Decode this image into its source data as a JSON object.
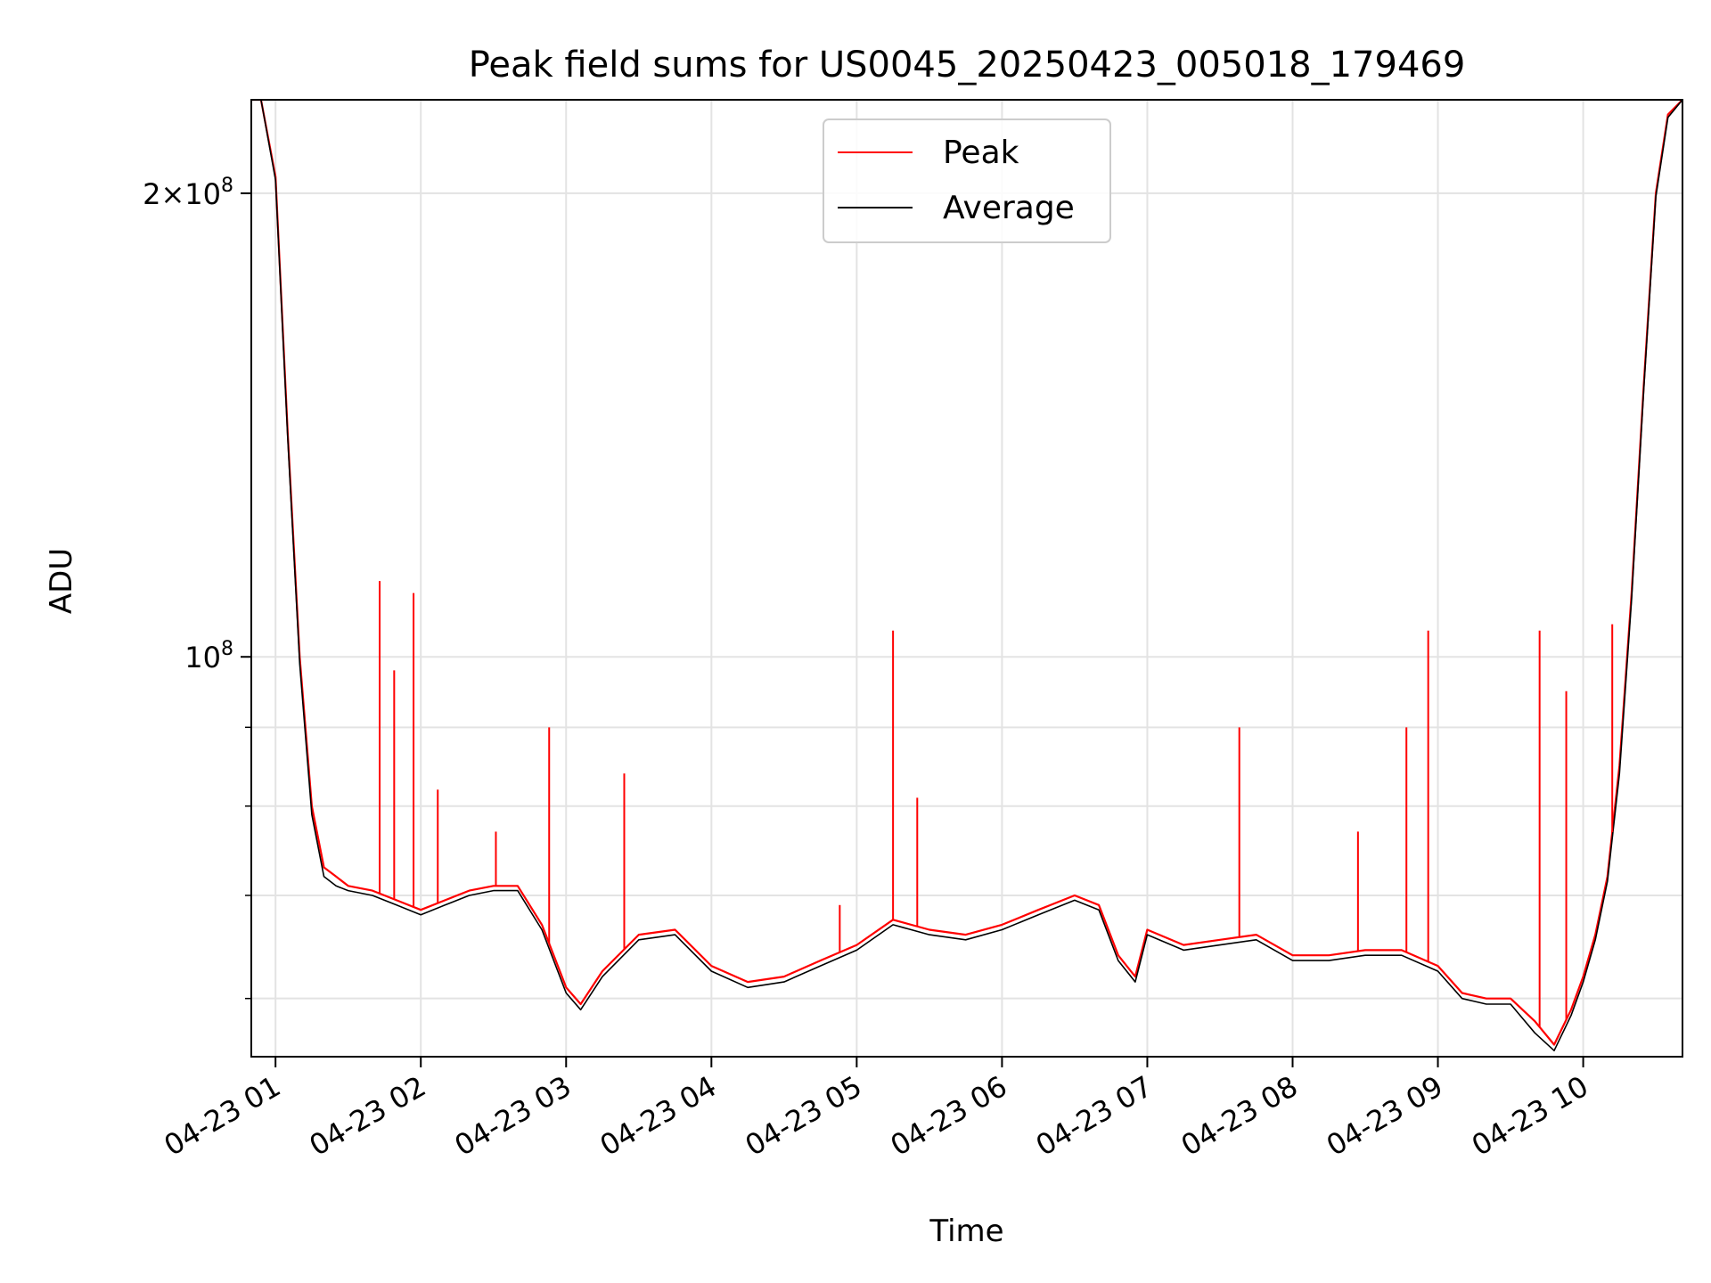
{
  "chart_data": {
    "type": "line",
    "title": "Peak field sums for US0045_20250423_005018_179469",
    "xlabel": "Time",
    "ylabel": "ADU",
    "yscale": "log",
    "ylim": [
      55000000,
      230000000
    ],
    "xlim": [
      "04-23 00:50",
      "04-23 10:41"
    ],
    "grid": true,
    "legend_position": "top-center",
    "xticks": [
      "04-23 01",
      "04-23 02",
      "04-23 03",
      "04-23 04",
      "04-23 05",
      "04-23 06",
      "04-23 07",
      "04-23 08",
      "04-23 09",
      "04-23 10"
    ],
    "xtick_times": [
      "04-23 01:00",
      "04-23 02:00",
      "04-23 03:00",
      "04-23 04:00",
      "04-23 05:00",
      "04-23 06:00",
      "04-23 07:00",
      "04-23 08:00",
      "04-23 09:00",
      "04-23 10:00"
    ],
    "yticks_major": [
      {
        "value": 100000000,
        "mant": "",
        "exp": "8"
      },
      {
        "value": 200000000,
        "mant": "2×",
        "exp": "8"
      }
    ],
    "yticks_minor": [
      60000000,
      70000000,
      80000000,
      90000000
    ],
    "series": [
      {
        "name": "Peak",
        "color": "#ff0000",
        "x": [
          "04-23 00:50",
          "04-23 00:54",
          "04-23 01:00",
          "04-23 01:05",
          "04-23 01:10",
          "04-23 01:15",
          "04-23 01:20",
          "04-23 01:25",
          "04-23 01:30",
          "04-23 01:40",
          "04-23 01:50",
          "04-23 02:00",
          "04-23 02:10",
          "04-23 02:20",
          "04-23 02:30",
          "04-23 02:40",
          "04-23 02:50",
          "04-23 03:00",
          "04-23 03:06",
          "04-23 03:15",
          "04-23 03:30",
          "04-23 03:45",
          "04-23 04:00",
          "04-23 04:15",
          "04-23 04:30",
          "04-23 04:45",
          "04-23 05:00",
          "04-23 05:15",
          "04-23 05:30",
          "04-23 05:45",
          "04-23 06:00",
          "04-23 06:15",
          "04-23 06:30",
          "04-23 06:40",
          "04-23 06:48",
          "04-23 06:55",
          "04-23 07:00",
          "04-23 07:15",
          "04-23 07:30",
          "04-23 07:45",
          "04-23 08:00",
          "04-23 08:15",
          "04-23 08:30",
          "04-23 08:45",
          "04-23 09:00",
          "04-23 09:10",
          "04-23 09:20",
          "04-23 09:30",
          "04-23 09:40",
          "04-23 09:48",
          "04-23 09:55",
          "04-23 10:00",
          "04-23 10:05",
          "04-23 10:10",
          "04-23 10:15",
          "04-23 10:20",
          "04-23 10:25",
          "04-23 10:30",
          "04-23 10:35",
          "04-23 10:41"
        ],
        "y": [
          230000000,
          230000000,
          205000000,
          140000000,
          100000000,
          80000000,
          73000000,
          72000000,
          71000000,
          70500000,
          69500000,
          68500000,
          69500000,
          70500000,
          71000000,
          71000000,
          67000000,
          61000000,
          59500000,
          62500000,
          66000000,
          66500000,
          63000000,
          61500000,
          62000000,
          63500000,
          65000000,
          67500000,
          66500000,
          66000000,
          67000000,
          68500000,
          70000000,
          69000000,
          64000000,
          62000000,
          66500000,
          65000000,
          65500000,
          66000000,
          64000000,
          64000000,
          64500000,
          64500000,
          63000000,
          60500000,
          60000000,
          60000000,
          58000000,
          56000000,
          59000000,
          62000000,
          66000000,
          72000000,
          85000000,
          110000000,
          150000000,
          200000000,
          225000000,
          230000000
        ]
      },
      {
        "name": "Average",
        "color": "#000000",
        "x": [
          "04-23 00:50",
          "04-23 00:54",
          "04-23 01:00",
          "04-23 01:05",
          "04-23 01:10",
          "04-23 01:15",
          "04-23 01:20",
          "04-23 01:25",
          "04-23 01:30",
          "04-23 01:40",
          "04-23 01:50",
          "04-23 02:00",
          "04-23 02:10",
          "04-23 02:20",
          "04-23 02:30",
          "04-23 02:40",
          "04-23 02:50",
          "04-23 03:00",
          "04-23 03:06",
          "04-23 03:15",
          "04-23 03:30",
          "04-23 03:45",
          "04-23 04:00",
          "04-23 04:15",
          "04-23 04:30",
          "04-23 04:45",
          "04-23 05:00",
          "04-23 05:15",
          "04-23 05:30",
          "04-23 05:45",
          "04-23 06:00",
          "04-23 06:15",
          "04-23 06:30",
          "04-23 06:40",
          "04-23 06:48",
          "04-23 06:55",
          "04-23 07:00",
          "04-23 07:15",
          "04-23 07:30",
          "04-23 07:45",
          "04-23 08:00",
          "04-23 08:15",
          "04-23 08:30",
          "04-23 08:45",
          "04-23 09:00",
          "04-23 09:10",
          "04-23 09:20",
          "04-23 09:30",
          "04-23 09:40",
          "04-23 09:48",
          "04-23 09:55",
          "04-23 10:00",
          "04-23 10:05",
          "04-23 10:10",
          "04-23 10:15",
          "04-23 10:20",
          "04-23 10:25",
          "04-23 10:30",
          "04-23 10:35",
          "04-23 10:41"
        ],
        "y": [
          230000000,
          230000000,
          204000000,
          139000000,
          99000000,
          79000000,
          72000000,
          71000000,
          70500000,
          70000000,
          69000000,
          68000000,
          69000000,
          70000000,
          70500000,
          70500000,
          66500000,
          60500000,
          59000000,
          62000000,
          65500000,
          66000000,
          62500000,
          61000000,
          61500000,
          63000000,
          64500000,
          67000000,
          66000000,
          65500000,
          66500000,
          68000000,
          69500000,
          68500000,
          63500000,
          61500000,
          66000000,
          64500000,
          65000000,
          65500000,
          63500000,
          63500000,
          64000000,
          64000000,
          62500000,
          60000000,
          59500000,
          59500000,
          57000000,
          55500000,
          58500000,
          61500000,
          65500000,
          71500000,
          84000000,
          109000000,
          149000000,
          199000000,
          224000000,
          230000000
        ]
      }
    ],
    "spikes": [
      {
        "series": "Peak",
        "x": "04-23 01:43",
        "y": 112000000
      },
      {
        "series": "Peak",
        "x": "04-23 01:49",
        "y": 98000000
      },
      {
        "series": "Peak",
        "x": "04-23 01:57",
        "y": 110000000
      },
      {
        "series": "Peak",
        "x": "04-23 02:07",
        "y": 82000000
      },
      {
        "series": "Peak",
        "x": "04-23 02:31",
        "y": 77000000
      },
      {
        "series": "Peak",
        "x": "04-23 02:53",
        "y": 90000000
      },
      {
        "series": "Peak",
        "x": "04-23 03:24",
        "y": 84000000
      },
      {
        "series": "Peak",
        "x": "04-23 04:53",
        "y": 69000000
      },
      {
        "series": "Peak",
        "x": "04-23 05:15",
        "y": 104000000
      },
      {
        "series": "Peak",
        "x": "04-23 05:25",
        "y": 81000000
      },
      {
        "series": "Peak",
        "x": "04-23 07:38",
        "y": 90000000
      },
      {
        "series": "Peak",
        "x": "04-23 08:27",
        "y": 77000000
      },
      {
        "series": "Peak",
        "x": "04-23 08:47",
        "y": 90000000
      },
      {
        "series": "Peak",
        "x": "04-23 08:56",
        "y": 104000000
      },
      {
        "series": "Peak",
        "x": "04-23 09:42",
        "y": 104000000
      },
      {
        "series": "Peak",
        "x": "04-23 09:53",
        "y": 95000000
      },
      {
        "series": "Peak",
        "x": "04-23 10:12",
        "y": 105000000
      }
    ]
  }
}
